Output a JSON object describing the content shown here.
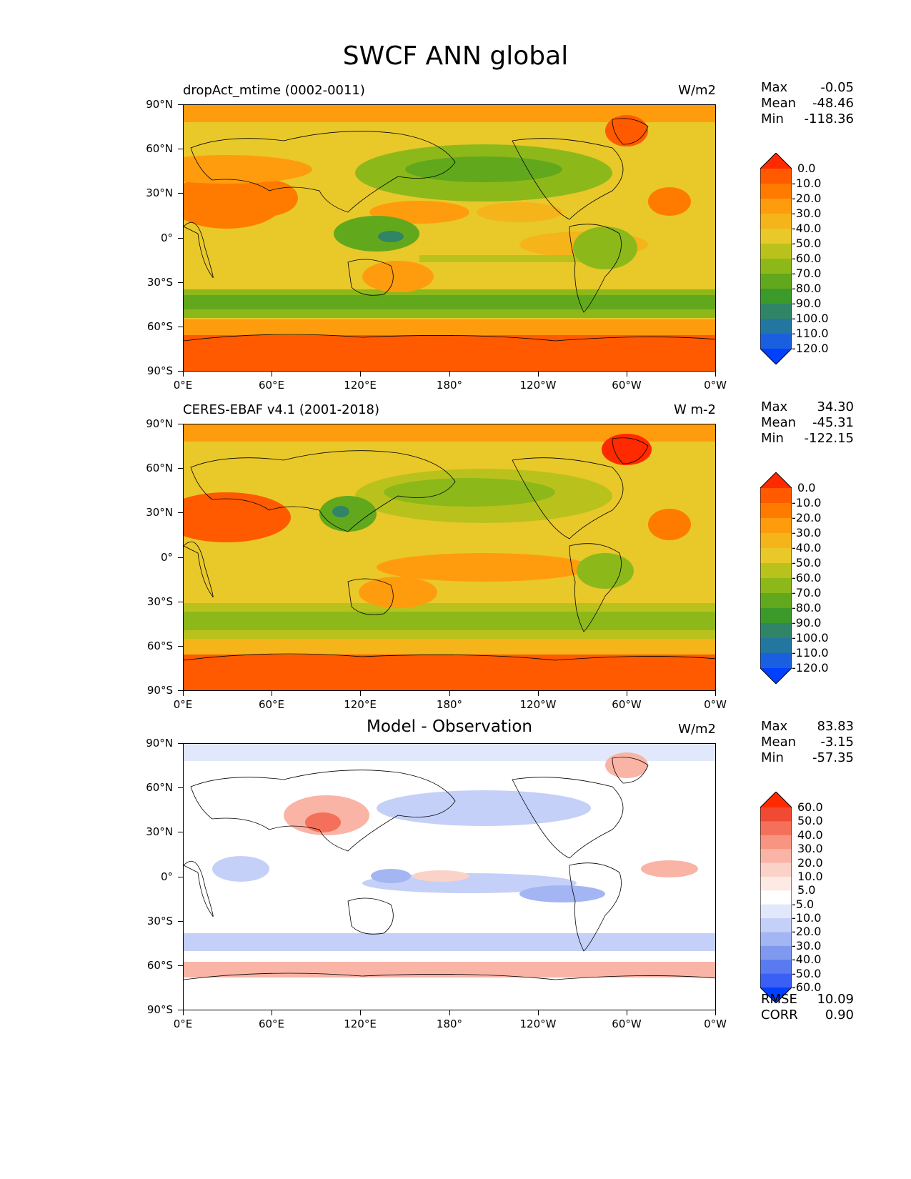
{
  "suptitle": "SWCF ANN global",
  "x_ticks": [
    "0°E",
    "60°E",
    "120°E",
    "180°",
    "120°W",
    "60°W",
    "0°W"
  ],
  "y_ticks": [
    "90°N",
    "60°N",
    "30°N",
    "0°",
    "30°S",
    "60°S",
    "90°S"
  ],
  "panels": [
    {
      "left_title": "dropAct_mtime (0002-0011)",
      "center_title": "",
      "units": "W/m2",
      "stats": [
        {
          "label": "Max",
          "value": "-0.05"
        },
        {
          "label": "Mean",
          "value": "-48.46"
        },
        {
          "label": "Min",
          "value": "-118.36"
        }
      ],
      "colorbar_labels": [
        "0.0",
        "-10.0",
        "-20.0",
        "-30.0",
        "-40.0",
        "-50.0",
        "-60.0",
        "-70.0",
        "-80.0",
        "-90.0",
        "-100.0",
        "-110.0",
        "-120.0"
      ],
      "colorbar_colors": [
        "#ff2a00",
        "#ff5a00",
        "#ff7b00",
        "#ff9c0d",
        "#f5b41a",
        "#e9c82a",
        "#b9c21c",
        "#8db81a",
        "#62a81c",
        "#3c9a2a",
        "#2f8566",
        "#2376a0",
        "#1a5fe0",
        "#0040ff"
      ],
      "extra": []
    },
    {
      "left_title": "CERES-EBAF v4.1 (2001-2018)",
      "center_title": "",
      "units": "W m-2",
      "stats": [
        {
          "label": "Max",
          "value": "34.30"
        },
        {
          "label": "Mean",
          "value": "-45.31"
        },
        {
          "label": "Min",
          "value": "-122.15"
        }
      ],
      "colorbar_labels": [
        "0.0",
        "-10.0",
        "-20.0",
        "-30.0",
        "-40.0",
        "-50.0",
        "-60.0",
        "-70.0",
        "-80.0",
        "-90.0",
        "-100.0",
        "-110.0",
        "-120.0"
      ],
      "colorbar_colors": [
        "#ff2a00",
        "#ff5a00",
        "#ff7b00",
        "#ff9c0d",
        "#f5b41a",
        "#e9c82a",
        "#b9c21c",
        "#8db81a",
        "#62a81c",
        "#3c9a2a",
        "#2f8566",
        "#2376a0",
        "#1a5fe0",
        "#0040ff"
      ],
      "extra": []
    },
    {
      "left_title": "",
      "center_title": "Model - Observation",
      "units": "W/m2",
      "stats": [
        {
          "label": "Max",
          "value": "83.83"
        },
        {
          "label": "Mean",
          "value": "-3.15"
        },
        {
          "label": "Min",
          "value": "-57.35"
        }
      ],
      "colorbar_labels": [
        "60.0",
        "50.0",
        "40.0",
        "30.0",
        "20.0",
        "10.0",
        "5.0",
        "-5.0",
        "-10.0",
        "-20.0",
        "-30.0",
        "-40.0",
        "-50.0",
        "-60.0"
      ],
      "colorbar_colors": [
        "#ff2a00",
        "#f04a32",
        "#f4705a",
        "#f79482",
        "#f9b4a6",
        "#fbd2c8",
        "#fdeae4",
        "#ffffff",
        "#e2e8fb",
        "#c4d0f7",
        "#a3b6f3",
        "#7f99ef",
        "#5a7bf0",
        "#3a5ff5",
        "#0040ff"
      ],
      "extra": [
        {
          "label": "RMSE",
          "value": "10.09"
        },
        {
          "label": "CORR",
          "value": "0.90"
        }
      ]
    }
  ]
}
